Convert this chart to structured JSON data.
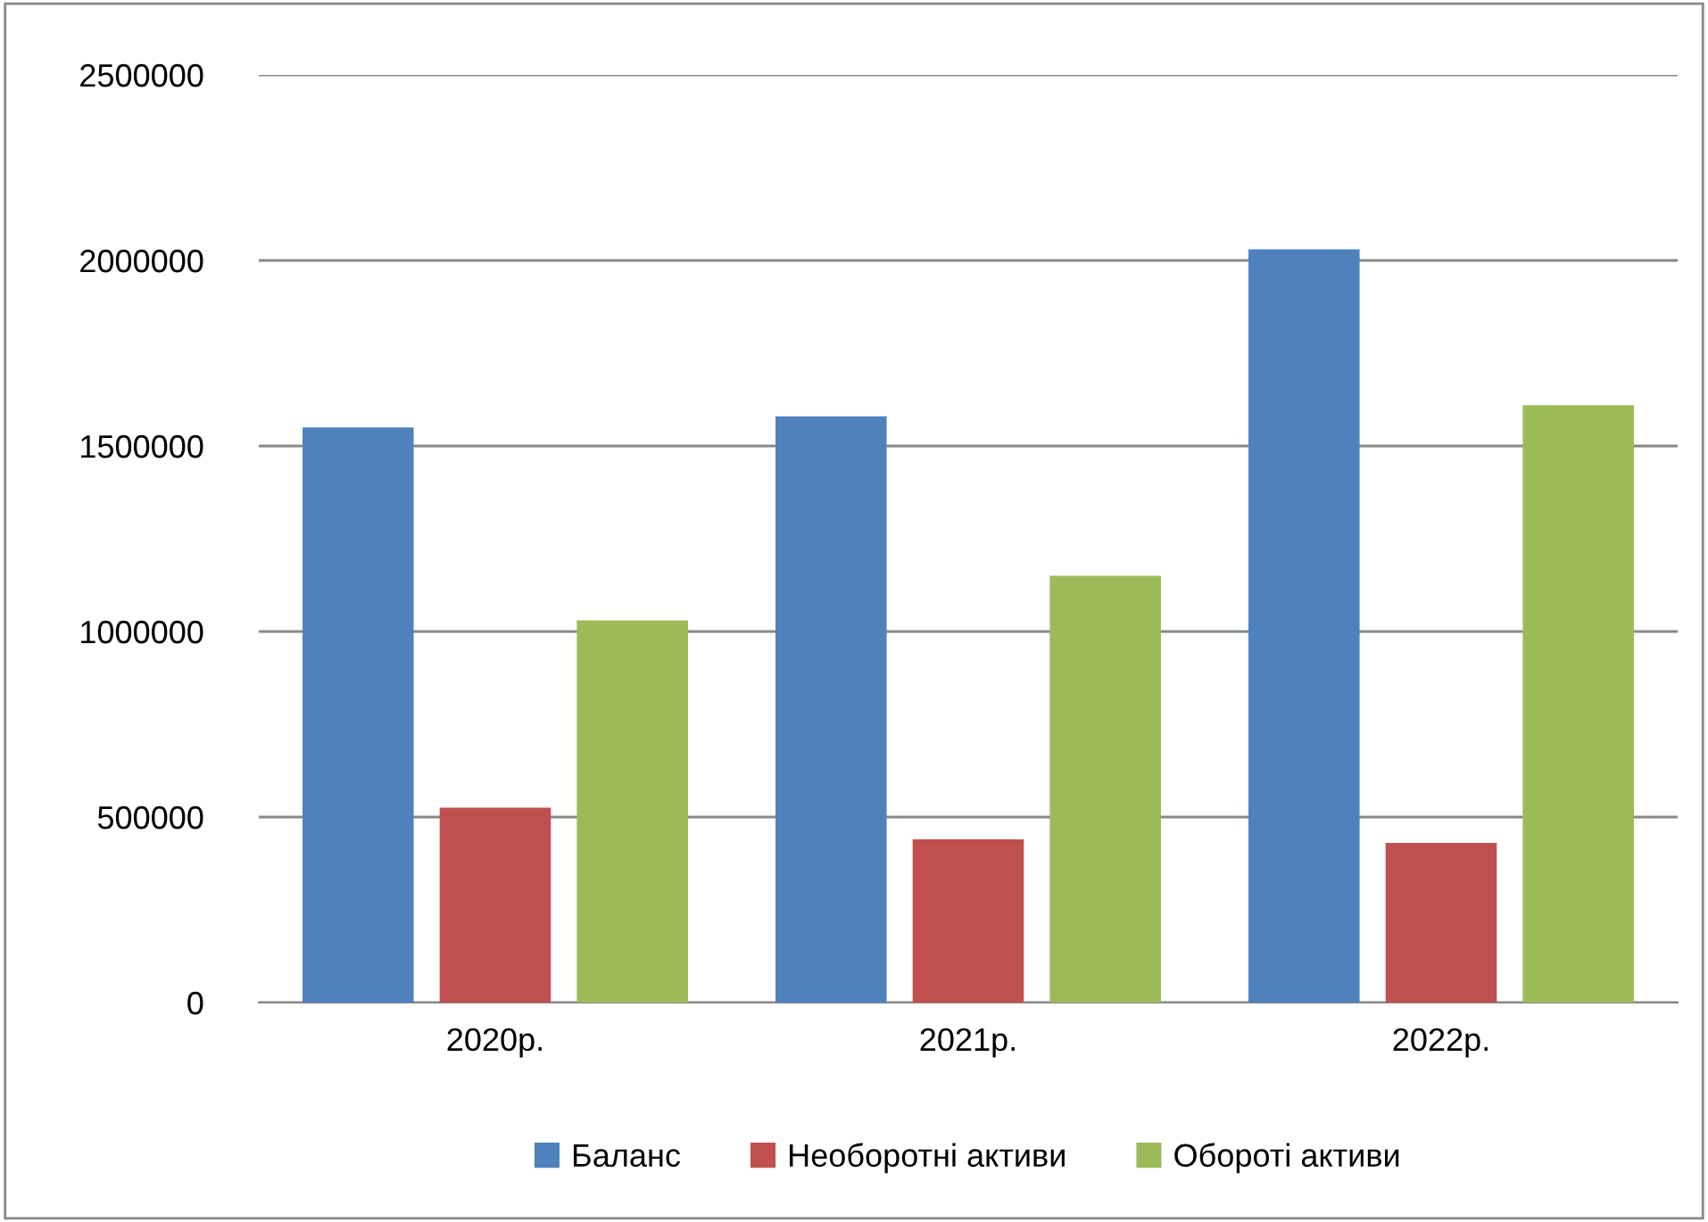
{
  "chart_data": {
    "type": "bar",
    "categories": [
      "2020р.",
      "2021р.",
      "2022р."
    ],
    "series": [
      {
        "name": "Баланс",
        "color": "#4f81bd",
        "values": [
          1550000,
          1580000,
          2030000
        ]
      },
      {
        "name": "Необоротні активи",
        "color": "#c0504d",
        "values": [
          525000,
          440000,
          430000
        ]
      },
      {
        "name": "Обороті активи",
        "color": "#9bbb59",
        "values": [
          1030000,
          1150000,
          1610000
        ]
      }
    ],
    "ylim": [
      0,
      2500000
    ],
    "yticks": [
      0,
      500000,
      1000000,
      1500000,
      2000000,
      2500000
    ],
    "grid": "y",
    "legend": "bottom"
  }
}
